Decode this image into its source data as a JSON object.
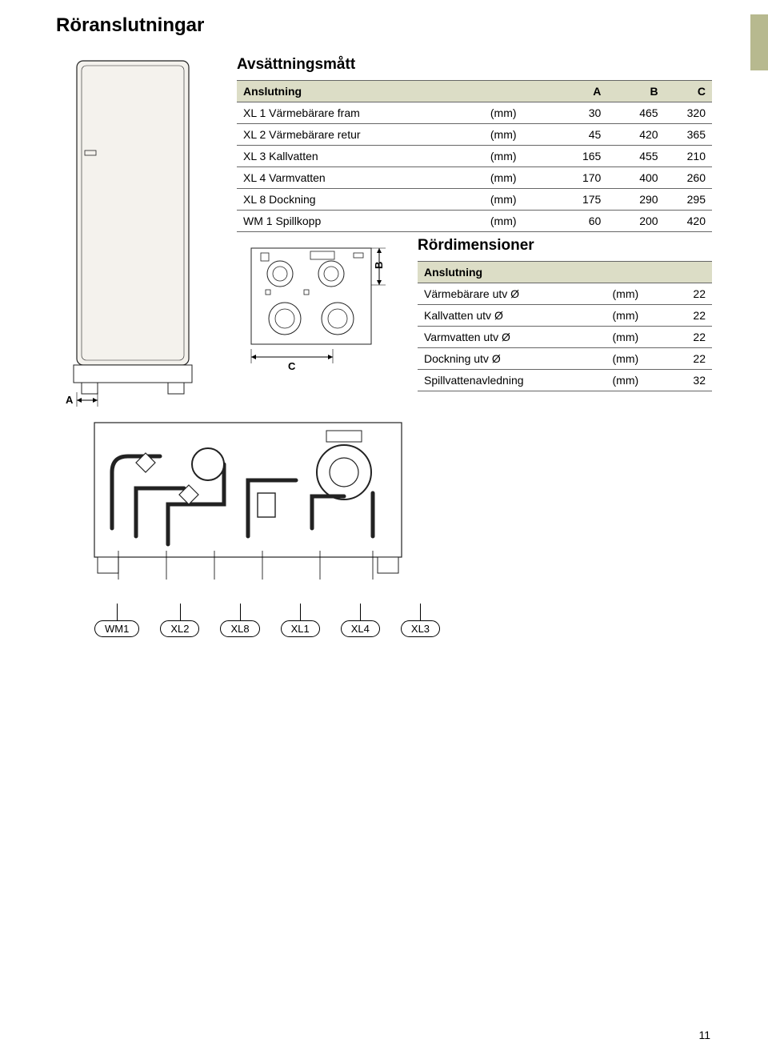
{
  "title": "Röranslutningar",
  "section1_title": "Avsättningsmått",
  "table1": {
    "headers": [
      "Anslutning",
      "",
      "A",
      "B",
      "C"
    ],
    "rows": [
      [
        "XL 1 Värmebärare fram",
        "(mm)",
        "30",
        "465",
        "320"
      ],
      [
        "XL 2 Värmebärare retur",
        "(mm)",
        "45",
        "420",
        "365"
      ],
      [
        "XL 3 Kallvatten",
        "(mm)",
        "165",
        "455",
        "210"
      ],
      [
        "XL 4 Varmvatten",
        "(mm)",
        "170",
        "400",
        "260"
      ],
      [
        "XL 8 Dockning",
        "(mm)",
        "175",
        "290",
        "295"
      ],
      [
        "WM 1 Spillkopp",
        "(mm)",
        "60",
        "200",
        "420"
      ]
    ]
  },
  "section2_title": "Rördimensioner",
  "table2": {
    "headers": [
      "Anslutning",
      "",
      ""
    ],
    "rows": [
      [
        "Värmebärare utv Ø",
        "(mm)",
        "22"
      ],
      [
        "Kallvatten utv Ø",
        "(mm)",
        "22"
      ],
      [
        "Varmvatten utv Ø",
        "(mm)",
        "22"
      ],
      [
        "Dockning utv Ø",
        "(mm)",
        "22"
      ],
      [
        "Spillvattenavledning",
        "(mm)",
        "32"
      ]
    ]
  },
  "dim_labels": {
    "A": "A",
    "B": "B",
    "C": "C"
  },
  "callouts": [
    "WM1",
    "XL2",
    "XL8",
    "XL1",
    "XL4",
    "XL3"
  ],
  "page_number": "11",
  "colors": {
    "header_bg": "#dcddc6",
    "tab_bg": "#b7b98f",
    "border": "#666666"
  }
}
